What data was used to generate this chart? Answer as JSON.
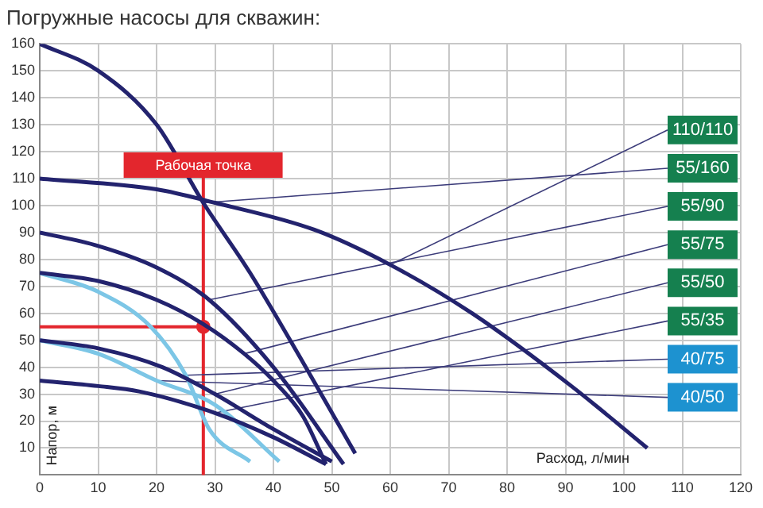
{
  "chart_data": {
    "type": "line",
    "title": "Погружные насосы для скважин:",
    "xlabel": "Расход, л/мин",
    "ylabel": "Напор, м",
    "xlim": [
      0,
      120
    ],
    "xticks": [
      0,
      10,
      20,
      30,
      40,
      50,
      60,
      70,
      80,
      90,
      100,
      110,
      120
    ],
    "ylim": [
      0,
      160
    ],
    "yticks": [
      10,
      20,
      30,
      40,
      50,
      60,
      70,
      80,
      90,
      100,
      110,
      120,
      130,
      140,
      150,
      160
    ],
    "grid": true,
    "legend": false,
    "marker": "none",
    "line_style": "solid",
    "series": [
      {
        "name": "110/110",
        "color": "#23236e",
        "x": [
          0,
          20,
          30,
          47,
          60,
          74,
          91,
          104
        ],
        "values": [
          110,
          106,
          101,
          91,
          78,
          60,
          33,
          10
        ]
      },
      {
        "name": "55/160",
        "color": "#23236e",
        "x": [
          0,
          10,
          20,
          28,
          36,
          45,
          54
        ],
        "values": [
          160,
          150,
          130,
          101,
          75,
          42,
          8
        ]
      },
      {
        "name": "55/90",
        "color": "#23236e",
        "x": [
          0,
          10,
          20,
          29,
          40,
          52
        ],
        "values": [
          90,
          85,
          77,
          65,
          40,
          4
        ]
      },
      {
        "name": "55/75",
        "color": "#23236e",
        "x": [
          0,
          10,
          20,
          28,
          35,
          40,
          45,
          49
        ],
        "values": [
          75,
          72,
          65,
          56,
          45,
          35,
          22,
          4
        ]
      },
      {
        "name": "55/50",
        "color": "#23236e",
        "x": [
          0,
          10,
          21,
          30,
          40,
          50
        ],
        "values": [
          50,
          47,
          40,
          30,
          17,
          5
        ]
      },
      {
        "name": "55/35",
        "color": "#23236e",
        "x": [
          0,
          10,
          17,
          30,
          40,
          49
        ],
        "values": [
          35,
          33,
          31,
          23,
          14,
          4
        ]
      },
      {
        "name": "40/75",
        "color": "#7cc6e6",
        "x": [
          0,
          10,
          19,
          25,
          29,
          36
        ],
        "values": [
          75,
          68,
          55,
          37,
          17,
          5
        ]
      },
      {
        "name": "40/50",
        "color": "#7cc6e6",
        "x": [
          0,
          10,
          20,
          30,
          41
        ],
        "values": [
          50,
          45,
          35,
          26,
          5
        ]
      },
      {
        "type": "scatter",
        "color": "#e3262d",
        "marker": "circle",
        "x": [
          28
        ],
        "values": [
          55
        ]
      }
    ],
    "ref_lines": [
      {
        "axis": "x",
        "value": 28,
        "color": "#e3262d"
      },
      {
        "axis": "y",
        "value": 55,
        "color": "#e3262d"
      }
    ],
    "annotations": [
      {
        "text": "Рабочая точка",
        "x": 28,
        "y": 115
      }
    ]
  }
}
